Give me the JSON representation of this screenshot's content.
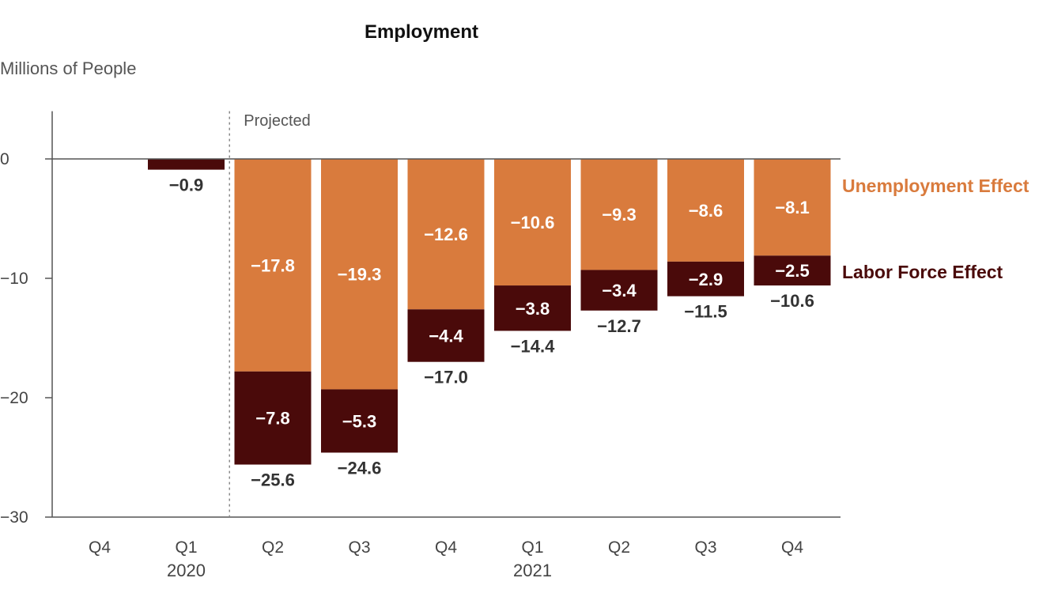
{
  "chart_data": {
    "type": "bar",
    "stacked": true,
    "title": "Employment",
    "ylabel": "Millions of People",
    "ylim": [
      -30,
      4
    ],
    "yticks": [
      0,
      -10,
      -20,
      -30
    ],
    "ytick_labels": [
      "0",
      "−10",
      "−20",
      "−30"
    ],
    "categories": [
      "Q4",
      "Q1",
      "Q2",
      "Q3",
      "Q4",
      "Q1",
      "Q2",
      "Q3",
      "Q4"
    ],
    "year_labels": [
      {
        "label": "2020",
        "category_index": 1
      },
      {
        "label": "2021",
        "category_index": 5
      }
    ],
    "projected_label": "Projected",
    "projected_start_index": 2,
    "series": [
      {
        "name": "Unemployment Effect",
        "color": "#D97B3D",
        "values": [
          null,
          null,
          -17.8,
          -19.3,
          -12.6,
          -10.6,
          -9.3,
          -8.6,
          -8.1
        ],
        "labels": [
          "",
          "",
          "−17.8",
          "−19.3",
          "−12.6",
          "−10.6",
          "−9.3",
          "−8.6",
          "−8.1"
        ]
      },
      {
        "name": "Labor Force Effect",
        "color": "#4A0A0A",
        "values": [
          null,
          -0.9,
          -7.8,
          -5.3,
          -4.4,
          -3.8,
          -3.4,
          -2.9,
          -2.5
        ],
        "labels": [
          "",
          "",
          "−7.8",
          "−5.3",
          "−4.4",
          "−3.8",
          "−3.4",
          "−2.9",
          "−2.5"
        ]
      }
    ],
    "totals": [
      null,
      -0.9,
      -25.6,
      -24.6,
      -17.0,
      -14.4,
      -12.7,
      -11.5,
      -10.6
    ],
    "total_labels": [
      "",
      "−0.9",
      "−25.6",
      "−24.6",
      "−17.0",
      "−14.4",
      "−12.7",
      "−11.5",
      "−10.6"
    ],
    "legend_placement": "right",
    "grid": false
  }
}
